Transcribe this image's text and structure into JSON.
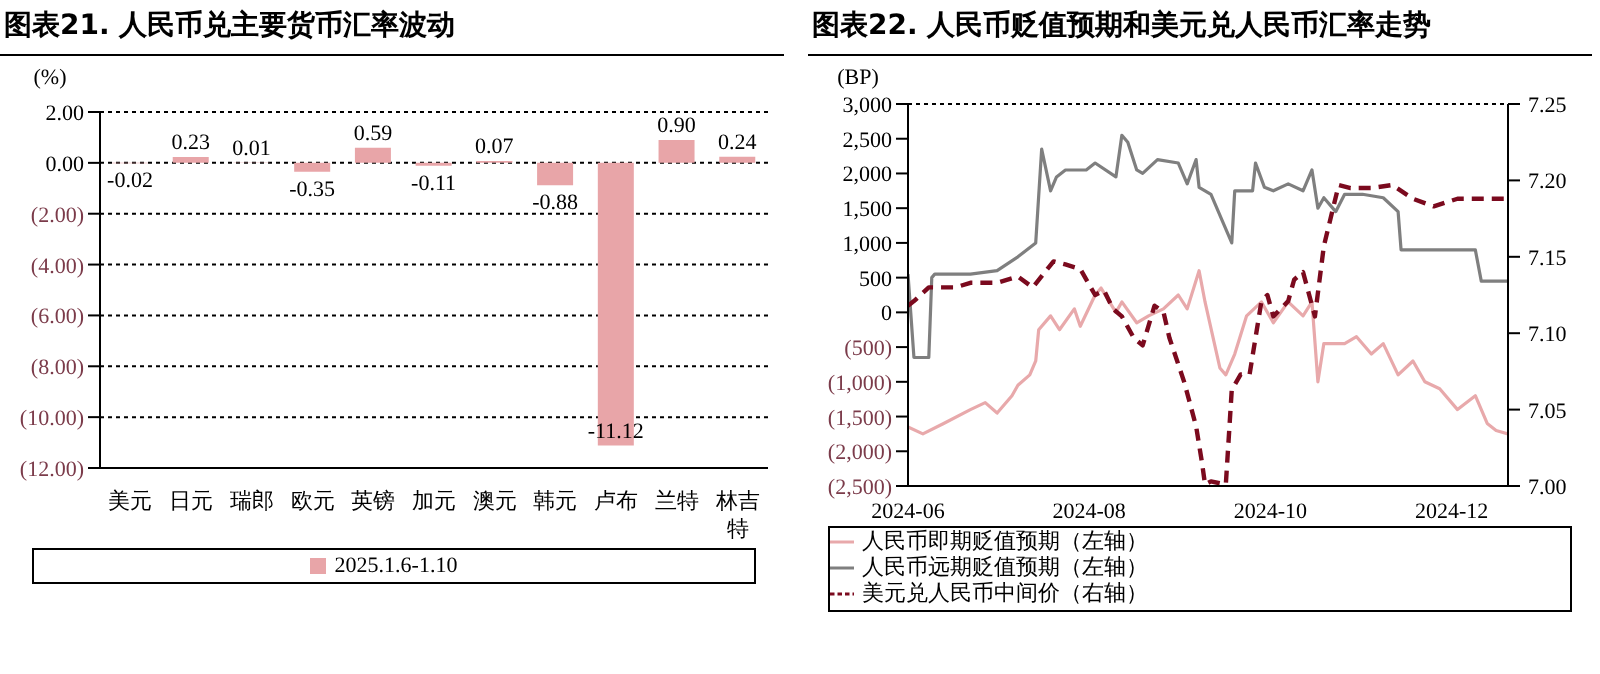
{
  "chart_data": [
    {
      "type": "bar",
      "title": "图表21. 人民币兑主要货币汇率波动",
      "ylabel": "(%)",
      "categories": [
        "美元",
        "日元",
        "瑞郎",
        "欧元",
        "英镑",
        "加元",
        "澳元",
        "韩元",
        "卢布",
        "兰特",
        "林吉特"
      ],
      "series": [
        {
          "name": "2025.1.6-1.10",
          "color": "#e8a5a8",
          "values": [
            -0.02,
            0.23,
            0.01,
            -0.35,
            0.59,
            -0.11,
            0.07,
            -0.88,
            -11.12,
            0.9,
            0.24
          ],
          "value_labels": [
            "-0.02",
            "0.23",
            "0.01",
            "-0.35",
            "0.59",
            "-0.11",
            "0.07",
            "-0.88",
            "-11.12",
            "0.90",
            "0.24"
          ]
        }
      ],
      "ylim": [
        -12,
        2
      ],
      "yticks": [
        {
          "value": 2,
          "label": "2.00"
        },
        {
          "value": 0,
          "label": "0.00"
        },
        {
          "value": -2,
          "label": "(2.00)"
        },
        {
          "value": -4,
          "label": "(4.00)"
        },
        {
          "value": -6,
          "label": "(6.00)"
        },
        {
          "value": -8,
          "label": "(8.00)"
        },
        {
          "value": -10,
          "label": "(10.00)"
        },
        {
          "value": -12,
          "label": "(12.00)"
        }
      ],
      "grid": "y",
      "legend": "bottom"
    },
    {
      "type": "line",
      "title": "图表22. 人民币贬值预期和美元兑人民币汇率走势",
      "ylabel": "(BP)",
      "xlim": [
        "2024-06-01",
        "2024-12-20"
      ],
      "xticks": [
        "2024-06",
        "2024-08",
        "2024-10",
        "2024-12"
      ],
      "ylim": [
        -2500,
        3000
      ],
      "yticks": [
        {
          "value": -2500,
          "label": "(2,500)"
        },
        {
          "value": -2000,
          "label": "(2,000)"
        },
        {
          "value": -1500,
          "label": "(1,500)"
        },
        {
          "value": -1000,
          "label": "(1,000)"
        },
        {
          "value": -500,
          "label": "(500)"
        },
        0,
        500,
        {
          "value": 1000,
          "label": "1,000"
        },
        {
          "value": 1500,
          "label": "1,500"
        },
        {
          "value": 2000,
          "label": "2,000"
        },
        {
          "value": 2500,
          "label": "2,500"
        },
        {
          "value": 3000,
          "label": "3,000"
        }
      ],
      "y2lim": [
        7.0,
        7.25
      ],
      "y2ticks": [
        {
          "value": 7.0,
          "label": "7.00"
        },
        7.05,
        {
          "value": 7.1,
          "label": "7.10"
        },
        7.15,
        {
          "value": 7.2,
          "label": "7.20"
        },
        7.25
      ],
      "grid": "y",
      "legend": "bottom",
      "series": [
        {
          "name": "人民币即期贬值预期（左轴）",
          "color": "#e8a9ab",
          "line_style": "solid",
          "x": [
            "2024-06-01",
            "2024-06-06",
            "2024-06-13",
            "2024-06-22",
            "2024-06-27",
            "2024-07-01",
            "2024-07-06",
            "2024-07-08",
            "2024-07-12",
            "2024-07-14",
            "2024-07-15",
            "2024-07-19",
            "2024-07-22",
            "2024-07-27",
            "2024-07-29",
            "2024-08-03",
            "2024-08-05",
            "2024-08-10",
            "2024-08-12",
            "2024-08-17",
            "2024-08-21",
            "2024-08-26",
            "2024-08-31",
            "2024-09-03",
            "2024-09-07",
            "2024-09-09",
            "2024-09-14",
            "2024-09-16",
            "2024-09-19",
            "2024-09-23",
            "2024-09-28",
            "2024-10-02",
            "2024-10-07",
            "2024-10-12",
            "2024-10-15",
            "2024-10-17",
            "2024-10-19",
            "2024-10-26",
            "2024-10-30",
            "2024-11-04",
            "2024-11-08",
            "2024-11-13",
            "2024-11-18",
            "2024-11-22",
            "2024-11-27",
            "2024-12-03",
            "2024-12-09",
            "2024-12-13",
            "2024-12-16",
            "2024-12-20"
          ],
          "values": [
            -1650,
            -1750,
            -1600,
            -1400,
            -1300,
            -1450,
            -1200,
            -1050,
            -900,
            -700,
            -250,
            -50,
            -250,
            50,
            -200,
            250,
            350,
            0,
            150,
            -150,
            -50,
            50,
            250,
            50,
            600,
            150,
            -800,
            -900,
            -600,
            -50,
            150,
            -150,
            150,
            -50,
            150,
            -1000,
            -450,
            -450,
            -350,
            -600,
            -450,
            -900,
            -700,
            -1000,
            -1100,
            -1400,
            -1200,
            -1600,
            -1700,
            -1750
          ]
        },
        {
          "name": "人民币远期贬值预期（左轴）",
          "color": "#7f7f7f",
          "line_style": "solid",
          "x": [
            "2024-06-01",
            "2024-06-03",
            "2024-06-08",
            "2024-06-09",
            "2024-06-10",
            "2024-06-22",
            "2024-07-01",
            "2024-07-08",
            "2024-07-14",
            "2024-07-16",
            "2024-07-19",
            "2024-07-21",
            "2024-07-24",
            "2024-07-31",
            "2024-08-03",
            "2024-08-10",
            "2024-08-12",
            "2024-08-14",
            "2024-08-17",
            "2024-08-19",
            "2024-08-24",
            "2024-08-31",
            "2024-09-03",
            "2024-09-06",
            "2024-09-07",
            "2024-09-11",
            "2024-09-15",
            "2024-09-18",
            "2024-09-19",
            "2024-09-25",
            "2024-09-26",
            "2024-09-29",
            "2024-10-02",
            "2024-10-07",
            "2024-10-12",
            "2024-10-15",
            "2024-10-17",
            "2024-10-19",
            "2024-10-23",
            "2024-10-26",
            "2024-11-01",
            "2024-11-08",
            "2024-11-13",
            "2024-11-14",
            "2024-11-27",
            "2024-12-09",
            "2024-12-11",
            "2024-12-20"
          ],
          "values": [
            550,
            -650,
            -650,
            500,
            550,
            550,
            600,
            800,
            1000,
            2350,
            1750,
            1950,
            2050,
            2050,
            2150,
            1950,
            2550,
            2450,
            2050,
            2000,
            2200,
            2150,
            1850,
            2200,
            1800,
            1700,
            1300,
            1000,
            1750,
            1750,
            2150,
            1800,
            1750,
            1850,
            1750,
            2050,
            1500,
            1650,
            1450,
            1700,
            1700,
            1650,
            1450,
            900,
            900,
            900,
            450,
            450
          ]
        },
        {
          "name": "美元兑人民币中间价（右轴）",
          "color": "#7b0a1e",
          "line_style": "dashed",
          "axis": "y2",
          "x": [
            "2024-06-01",
            "2024-06-03",
            "2024-06-08",
            "2024-06-17",
            "2024-06-22",
            "2024-07-01",
            "2024-07-08",
            "2024-07-13",
            "2024-07-20",
            "2024-07-24",
            "2024-07-29",
            "2024-08-03",
            "2024-08-06",
            "2024-08-09",
            "2024-08-12",
            "2024-08-16",
            "2024-08-19",
            "2024-08-23",
            "2024-08-26",
            "2024-08-28",
            "2024-09-02",
            "2024-09-06",
            "2024-09-08",
            "2024-09-09",
            "2024-09-11",
            "2024-09-16",
            "2024-09-18",
            "2024-09-21",
            "2024-09-24",
            "2024-09-28",
            "2024-09-30",
            "2024-10-02",
            "2024-10-07",
            "2024-10-09",
            "2024-10-12",
            "2024-10-16",
            "2024-10-19",
            "2024-10-21",
            "2024-10-24",
            "2024-10-28",
            "2024-11-04",
            "2024-11-11",
            "2024-11-18",
            "2024-11-25",
            "2024-12-03",
            "2024-12-11",
            "2024-12-20"
          ],
          "values": [
            7.118,
            7.121,
            7.13,
            7.13,
            7.133,
            7.133,
            7.137,
            7.13,
            7.147,
            7.145,
            7.142,
            7.125,
            7.128,
            7.116,
            7.111,
            7.097,
            7.092,
            7.118,
            7.114,
            7.097,
            7.068,
            7.039,
            7.015,
            7.001,
            7.003,
            7.001,
            7.063,
            7.073,
            7.073,
            7.121,
            7.125,
            7.111,
            7.121,
            7.135,
            7.14,
            7.111,
            7.157,
            7.173,
            7.197,
            7.195,
            7.195,
            7.197,
            7.188,
            7.183,
            7.188,
            7.188,
            7.188
          ]
        }
      ]
    }
  ]
}
